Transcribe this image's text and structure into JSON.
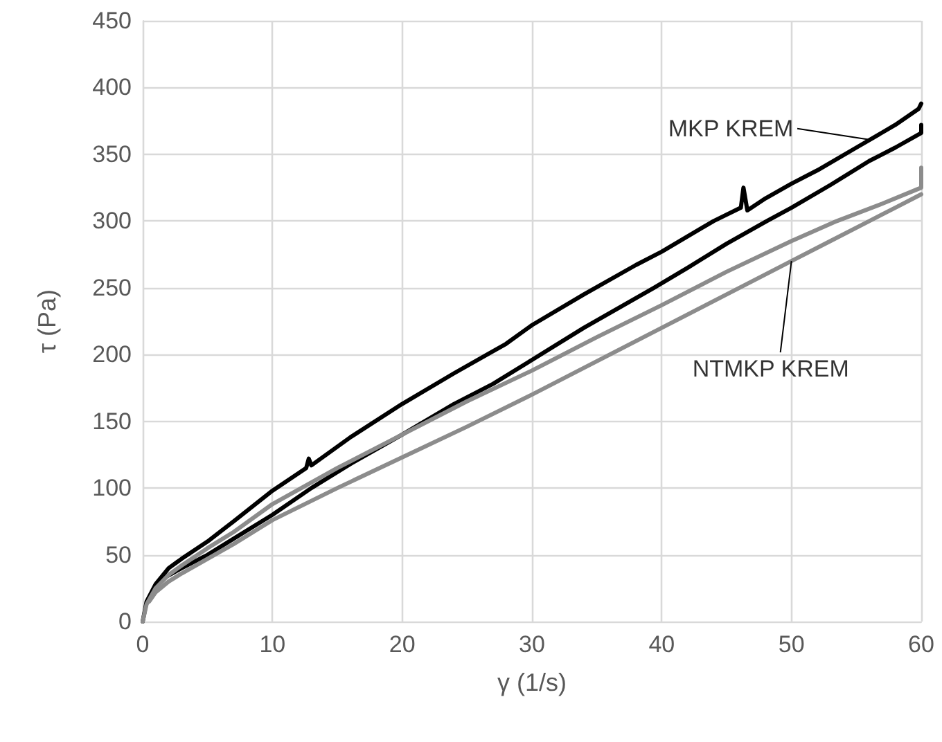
{
  "chart_data": {
    "type": "line",
    "xlabel": "γ (1/s)",
    "ylabel": "τ (Pa)",
    "xlim": [
      0,
      60
    ],
    "xticks": [
      0,
      10,
      20,
      30,
      40,
      50,
      60
    ],
    "ylim": [
      0,
      450
    ],
    "yticks": [
      0,
      50,
      100,
      150,
      200,
      250,
      300,
      350,
      400,
      450
    ],
    "grid": true,
    "marker": "none",
    "line_style": "solid",
    "series": [
      {
        "color": "#000000",
        "x": [
          0,
          0.3,
          1,
          2,
          3,
          5,
          7,
          10,
          12.6,
          12.8,
          13,
          16,
          20,
          24,
          28,
          30,
          34,
          38,
          40,
          44,
          46.1,
          46.3,
          46.6,
          48,
          50,
          52,
          55,
          58,
          59.8,
          60
        ],
        "values": [
          0,
          15,
          28,
          40,
          47,
          60,
          75,
          98,
          115,
          122,
          117,
          138,
          163,
          186,
          208,
          222,
          245,
          267,
          277,
          300,
          310,
          325,
          308,
          317,
          328,
          338,
          355,
          372,
          384,
          388
        ]
      },
      {
        "color": "#000000",
        "x": [
          1.7,
          3,
          5,
          7,
          10,
          13,
          16,
          20,
          24,
          27,
          30,
          34,
          39.4,
          42,
          45,
          48.1,
          50,
          53,
          56,
          58,
          60,
          60
        ],
        "values": [
          33,
          40,
          50,
          62,
          80,
          100,
          118,
          140,
          163,
          178,
          196,
          220,
          250,
          265,
          283,
          300,
          310,
          327,
          345,
          355,
          366,
          372
        ]
      },
      {
        "color": "#8c8c8c",
        "x": [
          0,
          0.3,
          1,
          2,
          3,
          5,
          7,
          10,
          15,
          20,
          25,
          30,
          35,
          40,
          45,
          50,
          53.5,
          57,
          60,
          60
        ],
        "values": [
          0,
          13,
          25,
          35,
          42,
          55,
          67,
          88,
          115,
          140,
          165,
          188,
          213,
          237,
          262,
          285,
          300,
          313,
          325,
          340
        ]
      },
      {
        "color": "#8c8c8c",
        "x": [
          0.5,
          1,
          2,
          3,
          5,
          7,
          10,
          15,
          20,
          25,
          30,
          35,
          40,
          45,
          50,
          53,
          56,
          58,
          60
        ],
        "values": [
          15,
          22,
          30,
          36,
          47,
          58,
          76,
          100,
          123,
          146,
          170,
          195,
          220,
          245,
          270,
          285,
          300,
          310,
          320
        ]
      }
    ],
    "annotations": [
      {
        "text": "MKP KREM",
        "x": 56,
        "y": 361
      },
      {
        "text": "NTMKP KREM",
        "x": 50,
        "y": 270
      }
    ]
  }
}
